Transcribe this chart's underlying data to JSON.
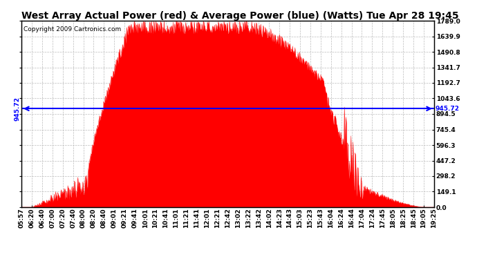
{
  "title": "West Array Actual Power (red) & Average Power (blue) (Watts) Tue Apr 28 19:45",
  "copyright": "Copyright 2009 Cartronics.com",
  "avg_power": 945.72,
  "y_max": 1789.0,
  "y_min": 0.0,
  "y_ticks": [
    0.0,
    149.1,
    298.2,
    447.2,
    596.3,
    745.4,
    894.5,
    1043.6,
    1192.7,
    1341.7,
    1490.8,
    1639.9,
    1789.0
  ],
  "y_tick_labels": [
    "0.0",
    "149.1",
    "298.2",
    "447.2",
    "596.3",
    "745.4",
    "894.5",
    "1043.6",
    "1192.7",
    "1341.7",
    "1490.8",
    "1639.9",
    "1789.0"
  ],
  "x_tick_labels": [
    "05:57",
    "06:20",
    "06:40",
    "07:00",
    "07:20",
    "07:40",
    "08:00",
    "08:20",
    "08:40",
    "09:01",
    "09:21",
    "09:41",
    "10:01",
    "10:21",
    "10:41",
    "11:01",
    "11:21",
    "11:41",
    "12:01",
    "12:21",
    "12:42",
    "13:02",
    "13:22",
    "13:42",
    "14:02",
    "14:23",
    "14:43",
    "15:03",
    "15:23",
    "15:43",
    "16:04",
    "16:24",
    "16:44",
    "17:04",
    "17:24",
    "17:45",
    "18:05",
    "18:25",
    "18:45",
    "19:05",
    "19:25"
  ],
  "title_fontsize": 10,
  "copyright_fontsize": 6.5,
  "tick_label_fontsize": 6.5,
  "bg_color": "#ffffff",
  "grid_color": "#bbbbbb",
  "red_color": "#ff0000",
  "blue_color": "#0000ff",
  "avg_label": "945.72"
}
